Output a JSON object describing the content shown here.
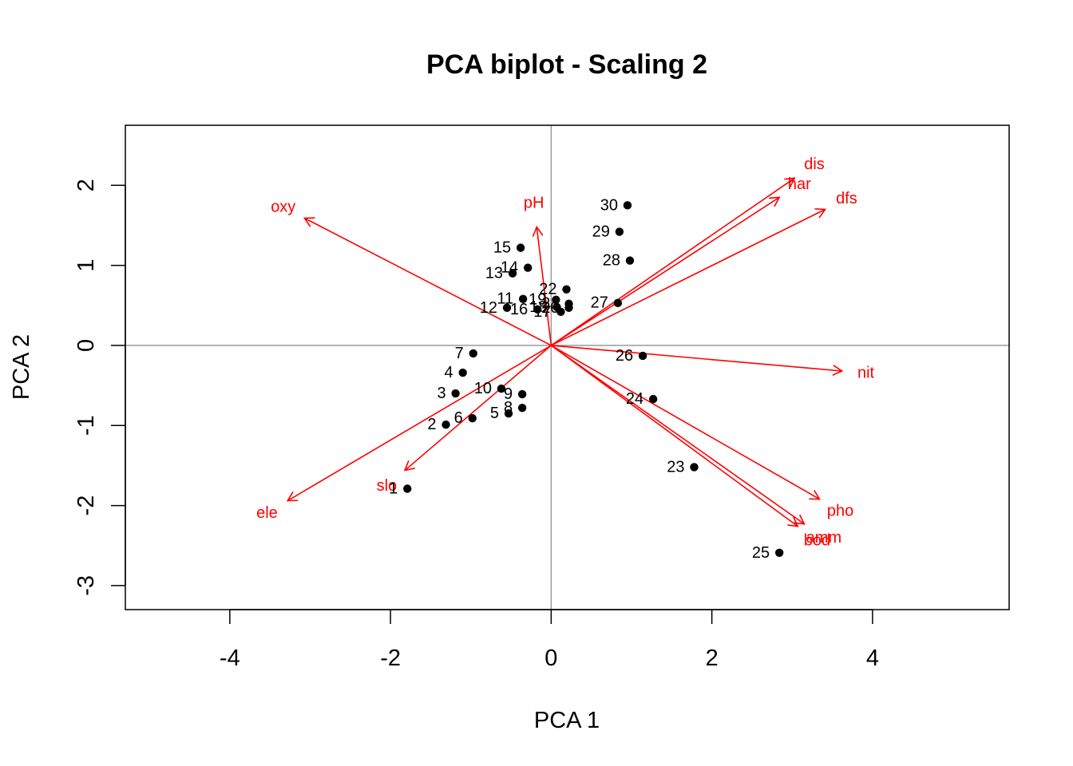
{
  "chart_data": {
    "type": "scatter",
    "title": "PCA biplot - Scaling 2",
    "xlabel": "PCA  1",
    "ylabel": "PCA  2",
    "xlim": [
      -5.3,
      5.7
    ],
    "ylim": [
      -3.3,
      2.75
    ],
    "xticks": [
      -4,
      -2,
      0,
      2,
      4
    ],
    "yticks": [
      -3,
      -2,
      -1,
      0,
      1,
      2
    ],
    "reference_lines": {
      "x": 0,
      "y": 0
    },
    "sites": [
      {
        "label": "1",
        "x": -1.79,
        "y": -1.79
      },
      {
        "label": "2",
        "x": -1.31,
        "y": -0.99
      },
      {
        "label": "3",
        "x": -1.19,
        "y": -0.6
      },
      {
        "label": "4",
        "x": -1.1,
        "y": -0.34
      },
      {
        "label": "5",
        "x": -0.53,
        "y": -0.85
      },
      {
        "label": "6",
        "x": -0.98,
        "y": -0.91
      },
      {
        "label": "7",
        "x": -0.97,
        "y": -0.1
      },
      {
        "label": "8",
        "x": -0.36,
        "y": -0.78
      },
      {
        "label": "9",
        "x": -0.36,
        "y": -0.61
      },
      {
        "label": "10",
        "x": -0.62,
        "y": -0.54
      },
      {
        "label": "11",
        "x": -0.35,
        "y": 0.58
      },
      {
        "label": "12",
        "x": -0.55,
        "y": 0.47
      },
      {
        "label": "13",
        "x": -0.48,
        "y": 0.9
      },
      {
        "label": "14",
        "x": -0.29,
        "y": 0.97
      },
      {
        "label": "15",
        "x": -0.38,
        "y": 1.22
      },
      {
        "label": "16",
        "x": -0.17,
        "y": 0.45
      },
      {
        "label": "17",
        "x": 0.12,
        "y": 0.42
      },
      {
        "label": "18",
        "x": 0.07,
        "y": 0.48
      },
      {
        "label": "19",
        "x": 0.06,
        "y": 0.57
      },
      {
        "label": "20",
        "x": 0.22,
        "y": 0.47
      },
      {
        "label": "21",
        "x": 0.22,
        "y": 0.52
      },
      {
        "label": "22",
        "x": 0.19,
        "y": 0.7
      },
      {
        "label": "23",
        "x": 1.78,
        "y": -1.52
      },
      {
        "label": "24",
        "x": 1.27,
        "y": -0.67
      },
      {
        "label": "25",
        "x": 2.84,
        "y": -2.59
      },
      {
        "label": "26",
        "x": 1.14,
        "y": -0.13
      },
      {
        "label": "27",
        "x": 0.83,
        "y": 0.53
      },
      {
        "label": "28",
        "x": 0.98,
        "y": 1.06
      },
      {
        "label": "29",
        "x": 0.85,
        "y": 1.42
      },
      {
        "label": "30",
        "x": 0.95,
        "y": 1.75
      }
    ],
    "variables": [
      {
        "label": "dis",
        "x": 3.03,
        "y": 2.09
      },
      {
        "label": "har",
        "x": 2.84,
        "y": 1.85
      },
      {
        "label": "dfs",
        "x": 3.41,
        "y": 1.7
      },
      {
        "label": "oxy",
        "x": -3.07,
        "y": 1.59
      },
      {
        "label": "pH",
        "x": -0.18,
        "y": 1.48
      },
      {
        "label": "nit",
        "x": 3.62,
        "y": -0.32
      },
      {
        "label": "slo",
        "x": -1.82,
        "y": -1.56
      },
      {
        "label": "ele",
        "x": -3.28,
        "y": -1.94
      },
      {
        "label": "pho",
        "x": 3.34,
        "y": -1.92
      },
      {
        "label": "amm",
        "x": 3.15,
        "y": -2.23
      },
      {
        "label": "bod",
        "x": 3.07,
        "y": -2.26
      }
    ],
    "colors": {
      "sites": "#000000",
      "variables": "#ff0000",
      "reference": "#999999"
    }
  }
}
